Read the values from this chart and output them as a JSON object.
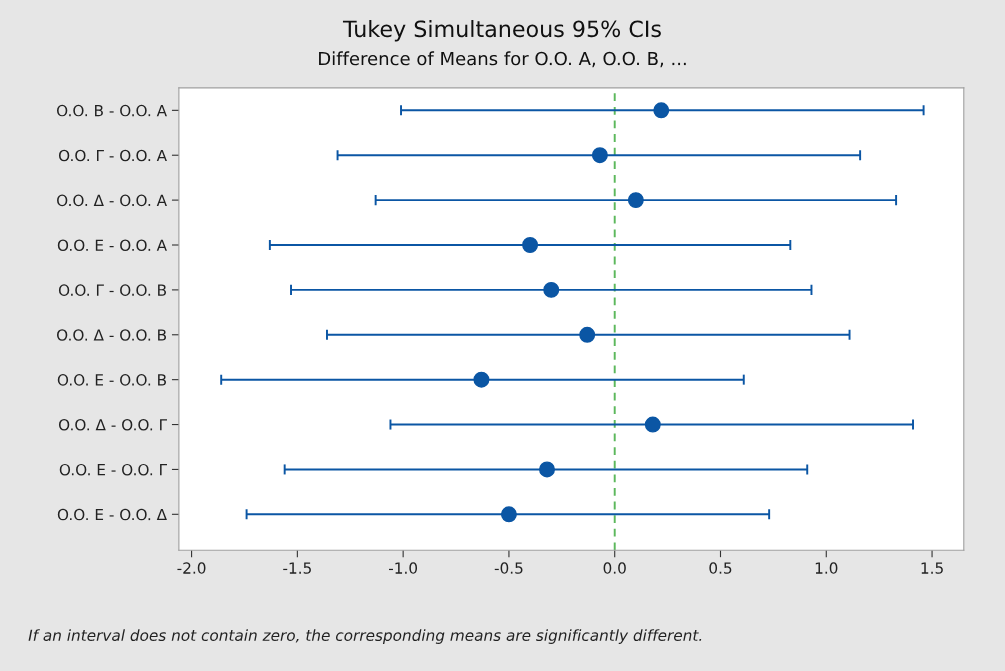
{
  "chart_data": {
    "type": "scatter",
    "orientation": "horizontal",
    "title": "Tukey Simultaneous 95% CIs",
    "subtitle": "Difference of Means for O.O. A, O.O. B, ...",
    "categories": [
      "O.O. B - O.O. A",
      "O.O. Γ - O.O. A",
      "O.O. Δ - O.O. A",
      "O.O. E - O.O. A",
      "O.O. Γ - O.O. B",
      "O.O. Δ - O.O. B",
      "O.O. E - O.O. B",
      "O.O. Δ - O.O. Γ",
      "O.O. E - O.O. Γ",
      "O.O. E - O.O. Δ"
    ],
    "series": [
      {
        "color": "#0b56a4",
        "values": [
          0.22,
          -0.07,
          0.1,
          -0.4,
          -0.3,
          -0.13,
          -0.63,
          0.18,
          -0.32,
          -0.5
        ],
        "errors": [
          [
            -1.01,
            1.46
          ],
          [
            -1.31,
            1.16
          ],
          [
            -1.13,
            1.33
          ],
          [
            -1.63,
            0.83
          ],
          [
            -1.53,
            0.93
          ],
          [
            -1.36,
            1.11
          ],
          [
            -1.86,
            0.61
          ],
          [
            -1.06,
            1.41
          ],
          [
            -1.56,
            0.91
          ],
          [
            -1.74,
            0.73
          ]
        ]
      }
    ],
    "xlim": [
      -2.06,
      1.65
    ],
    "xticks": [
      {
        "value": -2,
        "label": "-2.0"
      },
      {
        "value": -1.5,
        "label": "-1.5"
      },
      {
        "value": -1,
        "label": "-1.0"
      },
      {
        "value": -0.5,
        "label": "-0.5"
      },
      {
        "value": 0,
        "label": "0.0"
      },
      {
        "value": 0.5,
        "label": "0.5"
      },
      {
        "value": 1,
        "label": "1.0"
      },
      {
        "value": 1.5,
        "label": "1.5"
      }
    ],
    "ref_lines": [
      {
        "axis": "x",
        "value": 0,
        "color": "#5cb85c",
        "line_style": "dashed"
      }
    ],
    "marker": "circle",
    "grid": false,
    "legend": false,
    "annotations": [
      "If an interval does not contain zero, the corresponding means are significantly different."
    ]
  }
}
